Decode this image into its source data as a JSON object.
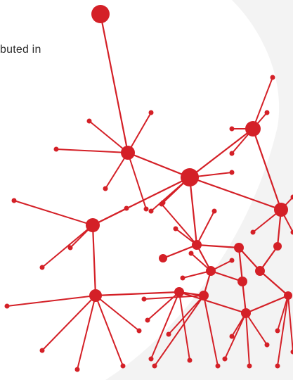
{
  "hero": {
    "cropped_text": "buted in"
  },
  "colors": {
    "background": "#ffffff",
    "panel": "#f3f3f3",
    "network_red": "#d42027",
    "text": "#2f2f2f"
  },
  "illustration": {
    "icon": "red-node-network-illustration"
  }
}
